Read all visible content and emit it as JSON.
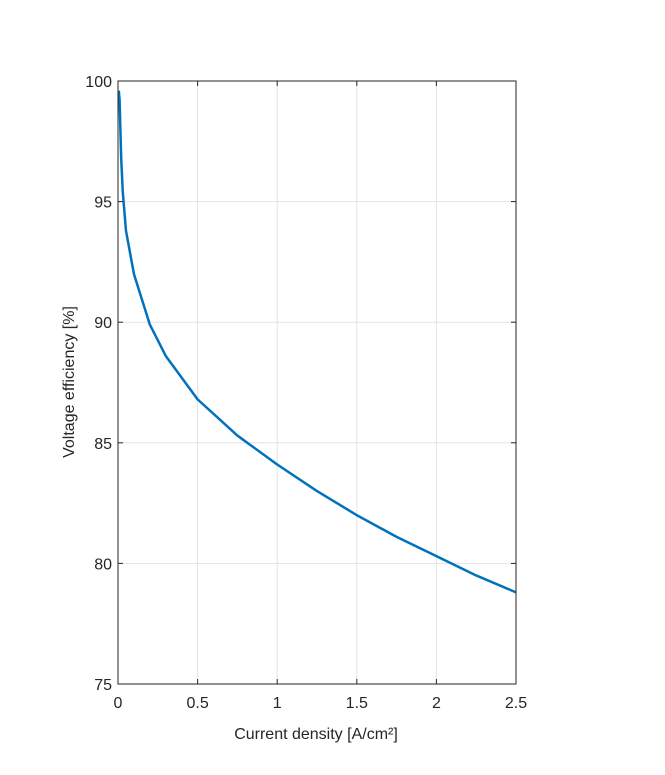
{
  "chart_data": {
    "type": "line",
    "xlabel": "Current density [A/cm²]",
    "ylabel": "Voltage efficiency [%]",
    "x": [
      0.005,
      0.01,
      0.02,
      0.03,
      0.05,
      0.1,
      0.2,
      0.3,
      0.5,
      0.75,
      1.0,
      1.25,
      1.5,
      1.75,
      2.0,
      2.25,
      2.5
    ],
    "series": [
      {
        "color": "#0072bd",
        "values": [
          99.6,
          99.2,
          96.8,
          95.4,
          93.8,
          92.0,
          89.9,
          88.6,
          86.8,
          85.3,
          84.1,
          83.0,
          82.0,
          81.1,
          80.3,
          79.5,
          78.8
        ]
      }
    ],
    "xlim": [
      0,
      2.5
    ],
    "xticks": [
      0,
      0.5,
      1,
      1.5,
      2,
      2.5
    ],
    "ylim": [
      75,
      100
    ],
    "yticks": [
      75,
      80,
      85,
      90,
      95,
      100
    ],
    "grid": true
  }
}
